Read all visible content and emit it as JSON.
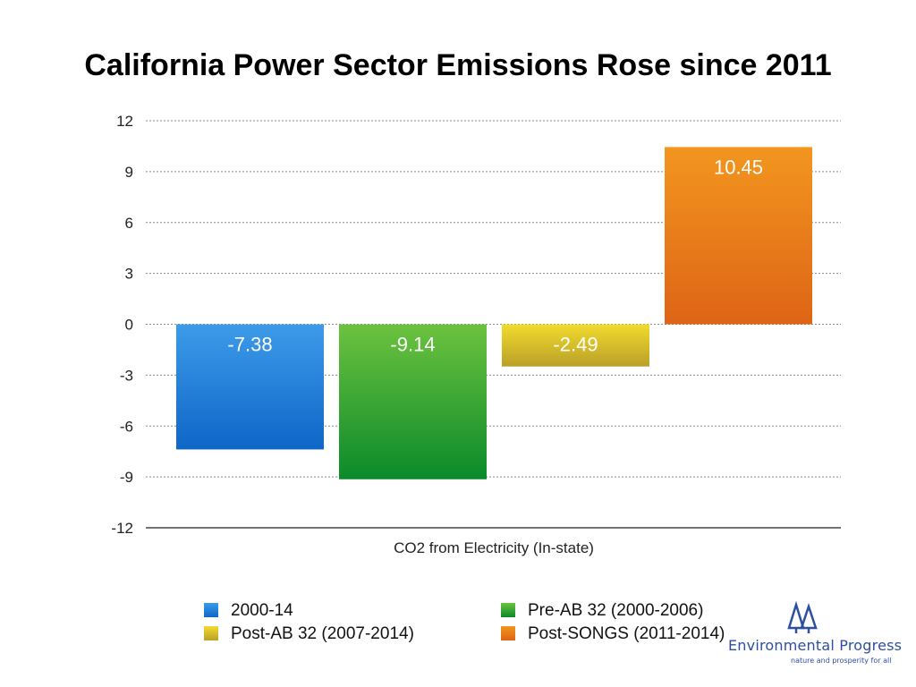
{
  "chart_data": {
    "type": "bar",
    "title": "California Power Sector Emissions Rose since 2011",
    "xlabel": "CO2 from Electricity (In-state)",
    "ylabel": "",
    "ylim": [
      -12,
      12
    ],
    "yticks": [
      12,
      9,
      6,
      3,
      0,
      -3,
      -6,
      -9,
      -12
    ],
    "grid": true,
    "legend_position": "bottom",
    "series": [
      {
        "name": "2000-14",
        "value": -7.38,
        "label": "-7.38",
        "color_top": "#3d9be9",
        "color_bottom": "#0e66c7"
      },
      {
        "name": "Pre-AB 32 (2000-2006)",
        "value": -9.14,
        "label": "-9.14",
        "color_top": "#6cc23f",
        "color_bottom": "#0b8a2a"
      },
      {
        "name": "Post-AB 32 (2007-2014)",
        "value": -2.49,
        "label": "-2.49",
        "color_top": "#f2db2e",
        "color_bottom": "#b9a028"
      },
      {
        "name": "Post-SONGS (2011-2014)",
        "value": 10.45,
        "label": "10.45",
        "color_top": "#f2961f",
        "color_bottom": "#de6416"
      }
    ]
  },
  "logo": {
    "name": "Environmental Progress",
    "tagline": "nature and prosperity for all",
    "color": "#2d4fa0"
  }
}
